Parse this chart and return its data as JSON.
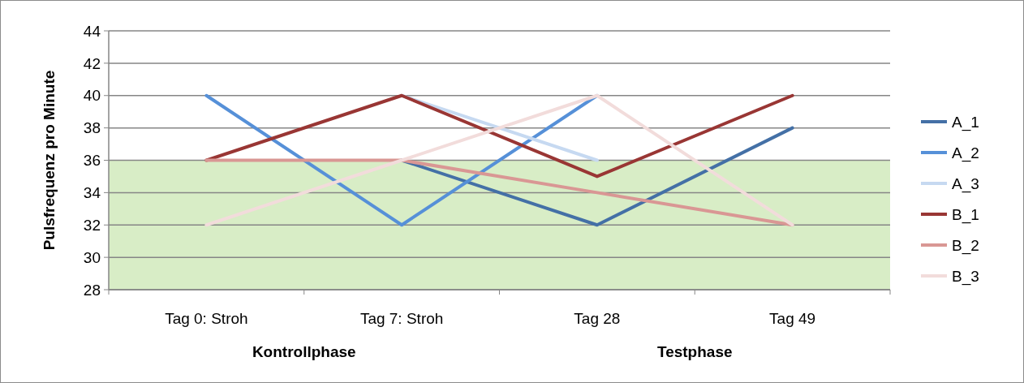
{
  "chart_data": {
    "type": "line",
    "ylabel": "Pulsfrequenz pro Minute",
    "categories": [
      "Tag 0: Stroh",
      "Tag 7: Stroh",
      "Tag 28",
      "Tag 49"
    ],
    "series": [
      {
        "name": "A_1",
        "color": "#4470a6",
        "values": [
          null,
          36,
          32,
          38
        ]
      },
      {
        "name": "A_2",
        "color": "#5690d8",
        "values": [
          40,
          32,
          40,
          null
        ]
      },
      {
        "name": "A_3",
        "color": "#c6d9f1",
        "values": [
          null,
          40,
          36,
          null
        ]
      },
      {
        "name": "B_1",
        "color": "#993634",
        "values": [
          36,
          40,
          35,
          40
        ]
      },
      {
        "name": "B_2",
        "color": "#d99794",
        "values": [
          36,
          36,
          34,
          32
        ]
      },
      {
        "name": "B_3",
        "color": "#f2dcdb",
        "values": [
          32,
          36,
          40,
          32
        ]
      }
    ],
    "ylim": [
      28,
      44
    ],
    "yticks": [
      28,
      30,
      32,
      34,
      36,
      38,
      40,
      42,
      44
    ],
    "grid": "y",
    "legend": "right",
    "marker": "none",
    "line_style": "solid",
    "bands": [
      {
        "axis": "y",
        "from": 28,
        "to": 36,
        "color": "#d8edc6"
      }
    ],
    "annotations": [
      "Kontrollphase",
      "Testphase"
    ]
  }
}
